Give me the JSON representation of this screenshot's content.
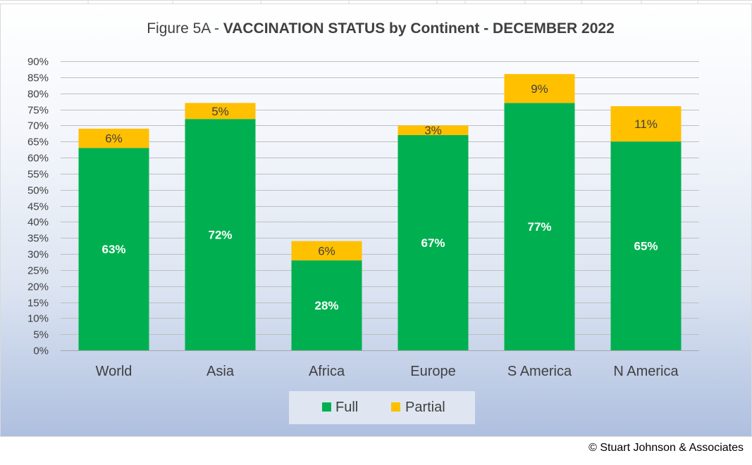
{
  "colors": {
    "full": "#00b050",
    "partial": "#ffc000",
    "gridline": "#bfbfbf",
    "axis": "#a6a6a6"
  },
  "chart_data": {
    "type": "bar",
    "stacked": true,
    "title_prefix": "Figure 5A - ",
    "title_main": "VACCINATION STATUS by Continent - DECEMBER 2022",
    "xlabel": "",
    "ylabel": "",
    "ylim": [
      0,
      90
    ],
    "ytick_step": 5,
    "ytick_format": "percent",
    "grid": true,
    "legend_position": "bottom",
    "categories": [
      "World",
      "Asia",
      "Africa",
      "Europe",
      "S America",
      "N America"
    ],
    "series": [
      {
        "name": "Full",
        "color": "#00b050",
        "values": [
          63,
          72,
          28,
          67,
          77,
          65
        ],
        "labels": [
          "63%",
          "72%",
          "28%",
          "67%",
          "77%",
          "65%"
        ]
      },
      {
        "name": "Partial",
        "color": "#ffc000",
        "values": [
          6,
          5,
          6,
          3,
          9,
          11
        ],
        "labels": [
          "6%",
          "5%",
          "6%",
          "3%",
          "9%",
          "11%"
        ]
      }
    ]
  },
  "footer": {
    "copyright": "© Stuart Johnson & Associates"
  }
}
